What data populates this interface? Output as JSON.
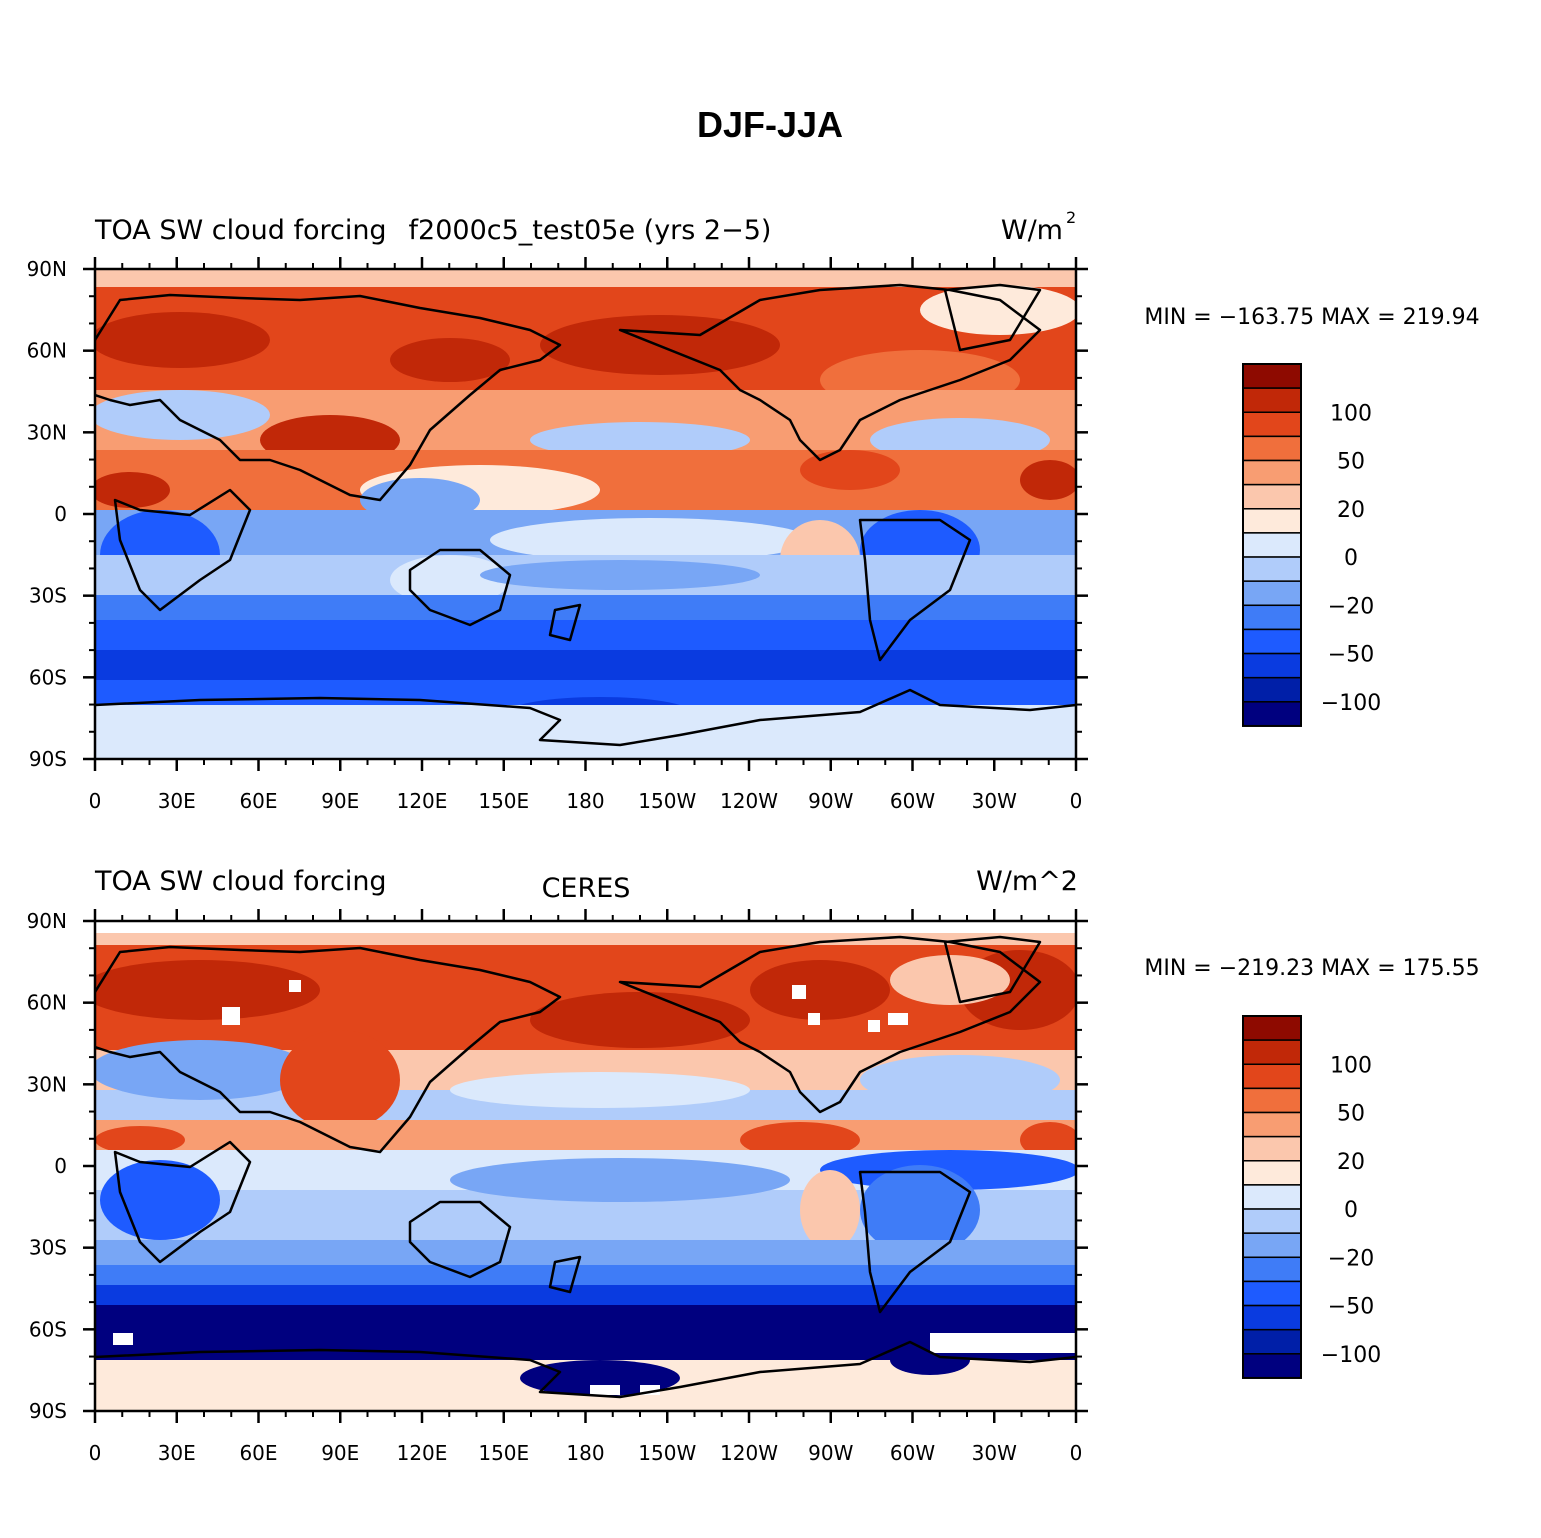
{
  "title": "DJF-JJA",
  "palette": [
    "#00007f",
    "#001fa8",
    "#0a3be0",
    "#1e5bff",
    "#3f7cf7",
    "#78a6f5",
    "#b0ccfa",
    "#dbe9fc",
    "#feeadb",
    "#fbc7ad",
    "#f89d72",
    "#f06f3c",
    "#e2461b",
    "#c12808",
    "#8e0a00"
  ],
  "panels": [
    {
      "left_title": "TOA SW cloud forcing",
      "center_title": "f2000c5_test05e (yrs 2−5)",
      "units": "W/m",
      "units_sup": "2",
      "stats": "MIN = −163.75 MAX = 219.94",
      "variant": "model"
    },
    {
      "left_title": "TOA SW cloud forcing",
      "center_title": "CERES",
      "units": "W/m^2",
      "units_sup": "",
      "stats": "MIN = −219.23 MAX = 175.55",
      "variant": "obs"
    }
  ],
  "y_ticks": [
    "90N",
    "60N",
    "30N",
    "0",
    "30S",
    "60S",
    "90S"
  ],
  "x_ticks": [
    "0",
    "30E",
    "60E",
    "90E",
    "120E",
    "150E",
    "180",
    "150W",
    "120W",
    "90W",
    "60W",
    "30W",
    "0"
  ],
  "colorbar_labels": [
    "100",
    "50",
    "20",
    "0",
    "−20",
    "−50",
    "−100"
  ]
}
